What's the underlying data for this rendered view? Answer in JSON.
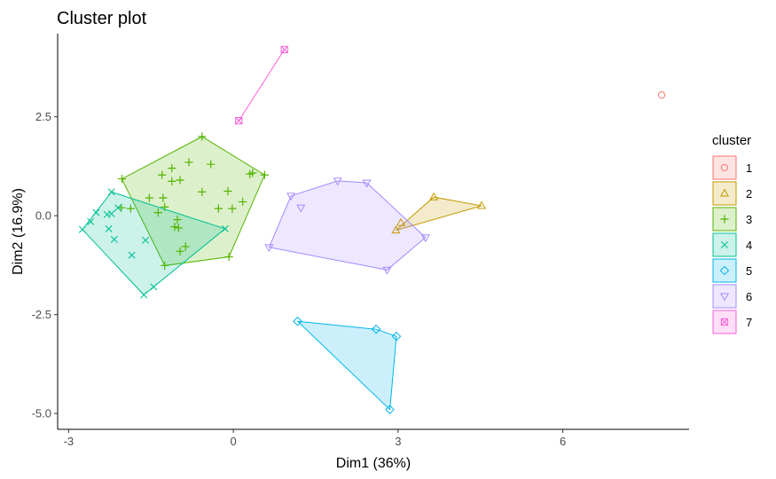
{
  "chart_data": {
    "type": "scatter",
    "title": "Cluster plot",
    "xlabel": "Dim1 (36%)",
    "ylabel": "Dim2 (16.9%)",
    "xlim": [
      -3.2,
      8.3
    ],
    "ylim": [
      -5.4,
      4.6
    ],
    "x_ticks": [
      -3,
      0,
      3,
      6
    ],
    "y_ticks": [
      -5.0,
      -2.5,
      0.0,
      2.5
    ],
    "x_tick_labels": [
      "-3",
      "0",
      "3",
      "6"
    ],
    "y_tick_labels": [
      "-5.0",
      "-2.5",
      "0.0",
      "2.5"
    ],
    "grid": false,
    "legend_title": "cluster",
    "legend_position": "right",
    "series": [
      {
        "name": "1",
        "color": "#F8766D",
        "fill": "#F8766D",
        "marker": "circle",
        "points": [
          [
            7.8,
            3.05
          ]
        ],
        "hull": [
          [
            7.8,
            3.05
          ]
        ]
      },
      {
        "name": "2",
        "color": "#C49A00",
        "fill": "#C49A00",
        "marker": "triangle",
        "points": [
          [
            3.65,
            0.47
          ],
          [
            4.52,
            0.25
          ],
          [
            2.96,
            -0.37
          ],
          [
            3.05,
            -0.18
          ]
        ],
        "hull": [
          [
            2.96,
            -0.37
          ],
          [
            3.65,
            0.47
          ],
          [
            4.52,
            0.25
          ]
        ]
      },
      {
        "name": "3",
        "color": "#53B400",
        "fill": "#53B400",
        "marker": "plus",
        "points": [
          [
            -0.57,
            2.0
          ],
          [
            -0.81,
            1.35
          ],
          [
            -1.12,
            1.2
          ],
          [
            -0.41,
            1.3
          ],
          [
            -1.3,
            1.03
          ],
          [
            -2.03,
            0.93
          ],
          [
            -1.12,
            0.87
          ],
          [
            -0.97,
            0.9
          ],
          [
            -0.57,
            0.6
          ],
          [
            -0.1,
            0.62
          ],
          [
            -1.28,
            0.45
          ],
          [
            0.17,
            0.35
          ],
          [
            0.3,
            1.05
          ],
          [
            0.35,
            1.08
          ],
          [
            0.57,
            1.03
          ],
          [
            -1.53,
            0.45
          ],
          [
            -1.25,
            0.22
          ],
          [
            -0.27,
            0.18
          ],
          [
            -0.02,
            0.18
          ],
          [
            -1.37,
            0.08
          ],
          [
            -1.87,
            0.18
          ],
          [
            -2.04,
            0.2
          ],
          [
            -1.02,
            -0.1
          ],
          [
            -1.07,
            -0.28
          ],
          [
            -1.0,
            -0.31
          ],
          [
            -0.87,
            -0.78
          ],
          [
            -0.97,
            -0.9
          ],
          [
            -1.25,
            -1.26
          ],
          [
            -0.08,
            -1.04
          ]
        ],
        "hull": [
          [
            -1.25,
            -1.26
          ],
          [
            -2.03,
            0.93
          ],
          [
            -0.57,
            2.0
          ],
          [
            0.57,
            1.03
          ],
          [
            -0.08,
            -1.04
          ]
        ]
      },
      {
        "name": "4",
        "color": "#00C094",
        "fill": "#00C094",
        "marker": "x",
        "points": [
          [
            -2.22,
            0.6
          ],
          [
            -2.5,
            0.08
          ],
          [
            -2.3,
            0.03
          ],
          [
            -2.22,
            0.05
          ],
          [
            -2.1,
            0.2
          ],
          [
            -2.6,
            -0.15
          ],
          [
            -2.75,
            -0.35
          ],
          [
            -2.27,
            -0.33
          ],
          [
            -2.17,
            -0.6
          ],
          [
            -1.6,
            -0.62
          ],
          [
            -1.85,
            -1.0
          ],
          [
            -1.45,
            -1.8
          ],
          [
            -1.63,
            -2.0
          ],
          [
            -0.15,
            -0.33
          ]
        ],
        "hull": [
          [
            -2.75,
            -0.35
          ],
          [
            -1.63,
            -2.0
          ],
          [
            -0.15,
            -0.33
          ],
          [
            -2.22,
            0.6
          ]
        ]
      },
      {
        "name": "5",
        "color": "#00B6EB",
        "fill": "#00B6EB",
        "marker": "diamond",
        "points": [
          [
            1.17,
            -2.67
          ],
          [
            2.6,
            -2.87
          ],
          [
            2.97,
            -3.05
          ],
          [
            2.85,
            -4.9
          ]
        ],
        "hull": [
          [
            1.17,
            -2.67
          ],
          [
            2.6,
            -2.87
          ],
          [
            2.97,
            -3.05
          ],
          [
            2.85,
            -4.9
          ]
        ]
      },
      {
        "name": "6",
        "color": "#A58AFF",
        "fill": "#A58AFF",
        "marker": "triangle-down",
        "points": [
          [
            1.9,
            0.88
          ],
          [
            2.43,
            0.83
          ],
          [
            1.05,
            0.5
          ],
          [
            1.23,
            0.2
          ],
          [
            3.5,
            -0.55
          ],
          [
            0.65,
            -0.8
          ],
          [
            2.8,
            -1.37
          ]
        ],
        "hull": [
          [
            0.65,
            -0.8
          ],
          [
            1.05,
            0.5
          ],
          [
            1.9,
            0.88
          ],
          [
            2.43,
            0.83
          ],
          [
            3.5,
            -0.55
          ],
          [
            2.8,
            -1.37
          ]
        ]
      },
      {
        "name": "7",
        "color": "#FB61D7",
        "fill": "#FB61D7",
        "marker": "square-x",
        "points": [
          [
            0.1,
            2.4
          ],
          [
            0.93,
            4.2
          ]
        ],
        "hull": [
          [
            0.1,
            2.4
          ],
          [
            0.93,
            4.2
          ]
        ]
      }
    ]
  }
}
